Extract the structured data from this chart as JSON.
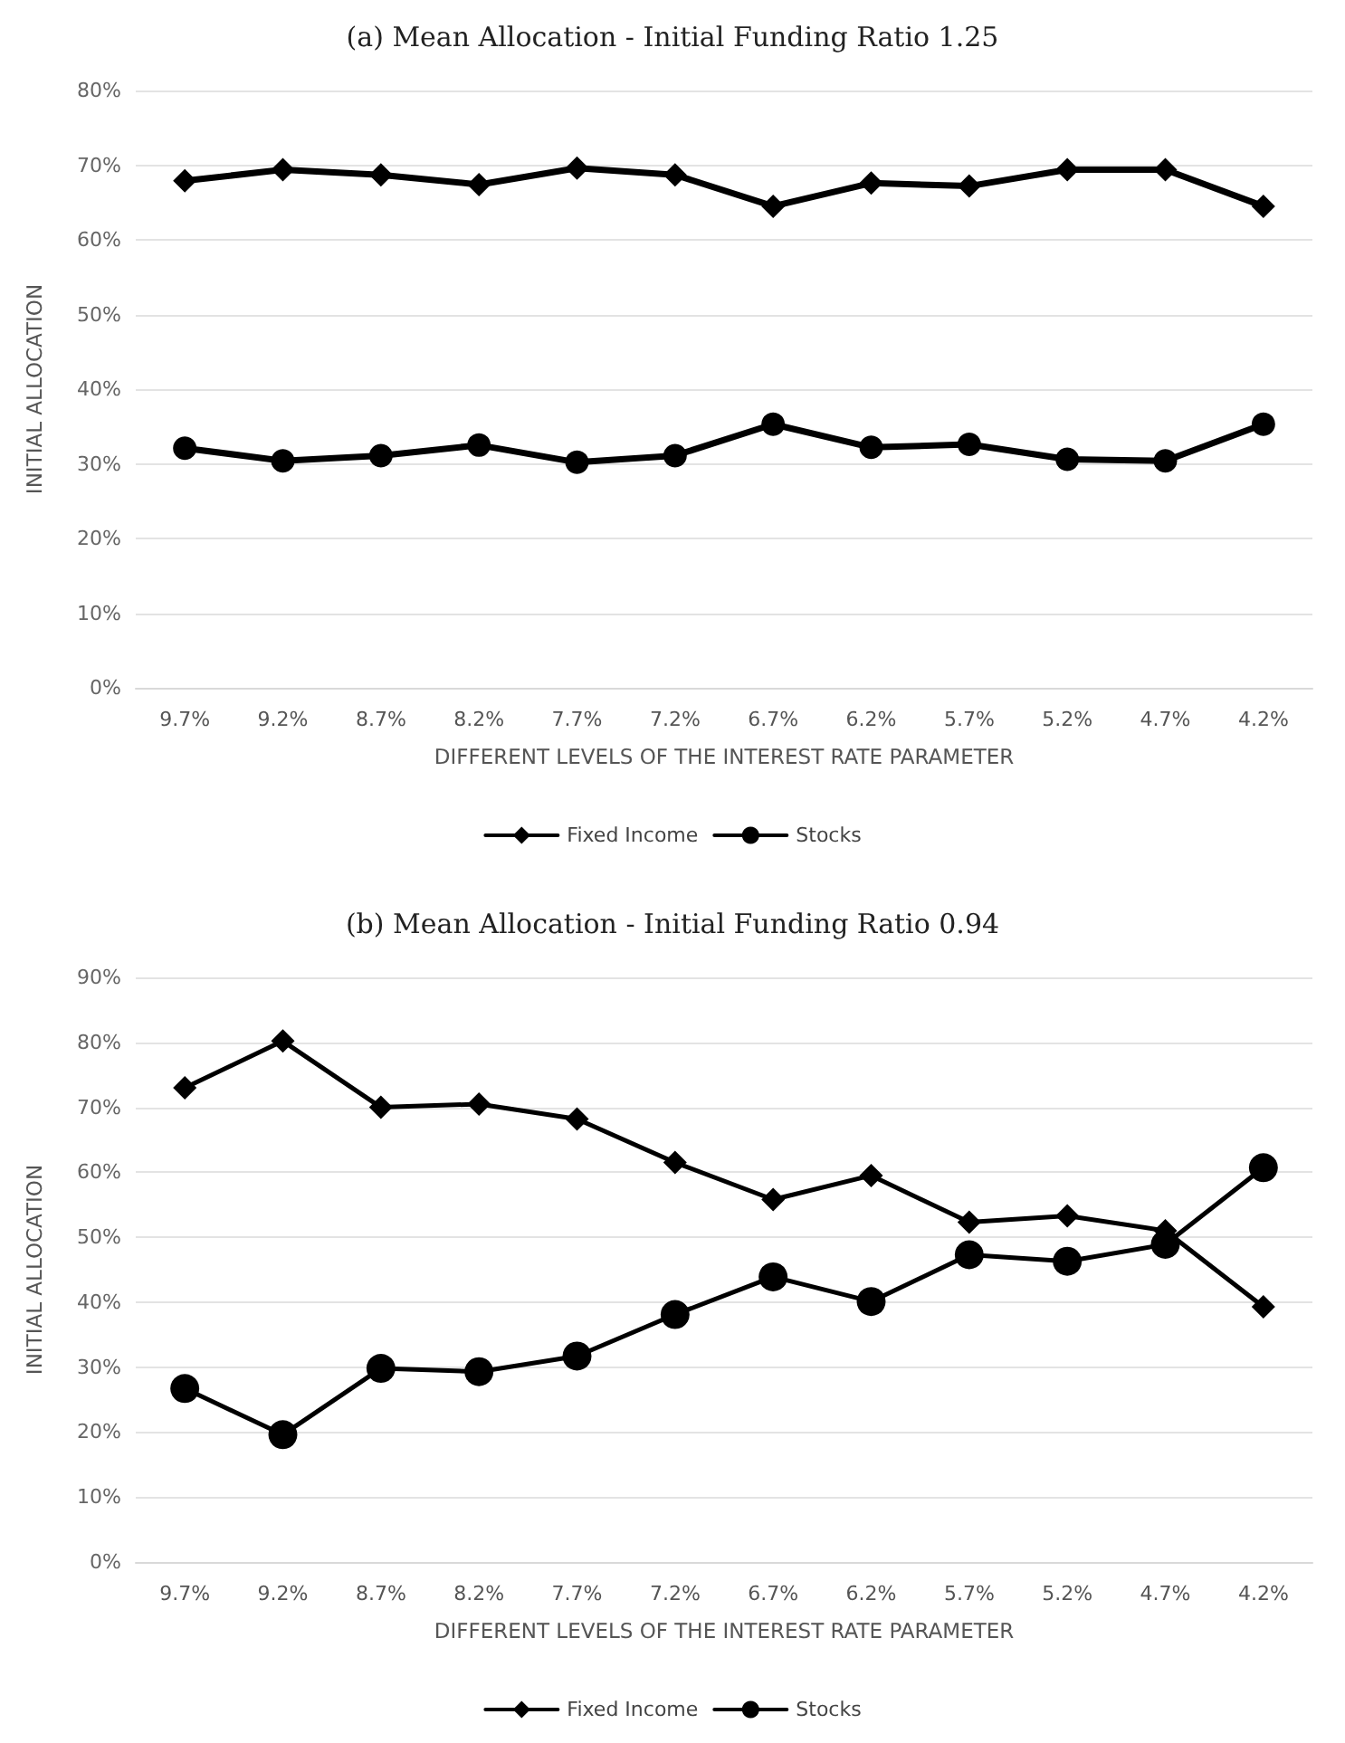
{
  "chart_data": [
    {
      "type": "line",
      "title": "(a) Mean Allocation - Initial Funding Ratio 1.25",
      "xlabel": "DIFFERENT LEVELS OF THE INTEREST RATE PARAMETER",
      "ylabel": "INITIAL ALLOCATION",
      "categories": [
        "9.7%",
        "9.2%",
        "8.7%",
        "8.2%",
        "7.7%",
        "7.2%",
        "6.7%",
        "6.2%",
        "5.7%",
        "5.2%",
        "4.7%",
        "4.2%"
      ],
      "ylim": [
        0,
        80
      ],
      "yticks": [
        {
          "value": 0,
          "label": "0%"
        },
        {
          "value": 10,
          "label": "10%"
        },
        {
          "value": 20,
          "label": "20%"
        },
        {
          "value": 30,
          "label": "30%"
        },
        {
          "value": 40,
          "label": "40%"
        },
        {
          "value": 50,
          "label": "50%"
        },
        {
          "value": 60,
          "label": "60%"
        },
        {
          "value": 70,
          "label": "70%"
        },
        {
          "value": 80,
          "label": "80%"
        }
      ],
      "grid": "y",
      "legend": "bottom",
      "line_style": "solid",
      "series": [
        {
          "name": "Fixed Income",
          "color": "#000000",
          "marker": "diamond",
          "values": [
            67.9,
            69.4,
            68.7,
            67.4,
            69.6,
            68.7,
            64.5,
            67.6,
            67.2,
            69.4,
            69.4,
            64.5
          ]
        },
        {
          "name": "Stocks",
          "color": "#000000",
          "marker": "circle",
          "values": [
            32.1,
            30.4,
            31.1,
            32.5,
            30.2,
            31.1,
            35.3,
            32.2,
            32.6,
            30.6,
            30.4,
            35.3
          ]
        }
      ]
    },
    {
      "type": "line",
      "title": "(b) Mean Allocation - Initial Funding Ratio 0.94",
      "xlabel": "DIFFERENT LEVELS OF THE INTEREST RATE PARAMETER",
      "ylabel": "INITIAL ALLOCATION",
      "categories": [
        "9.7%",
        "9.2%",
        "8.7%",
        "8.2%",
        "7.7%",
        "7.2%",
        "6.7%",
        "6.2%",
        "5.7%",
        "5.2%",
        "4.7%",
        "4.2%"
      ],
      "ylim": [
        0,
        90
      ],
      "yticks": [
        {
          "value": 0,
          "label": "0%"
        },
        {
          "value": 10,
          "label": "10%"
        },
        {
          "value": 20,
          "label": "20%"
        },
        {
          "value": 30,
          "label": "30%"
        },
        {
          "value": 40,
          "label": "40%"
        },
        {
          "value": 50,
          "label": "50%"
        },
        {
          "value": 60,
          "label": "60%"
        },
        {
          "value": 70,
          "label": "70%"
        },
        {
          "value": 80,
          "label": "80%"
        },
        {
          "value": 90,
          "label": "90%"
        }
      ],
      "grid": "y",
      "legend": "bottom",
      "line_style": "solid",
      "series": [
        {
          "name": "Fixed Income",
          "color": "#000000",
          "marker": "diamond",
          "values": [
            73,
            80.2,
            70,
            70.5,
            68.2,
            61.5,
            55.8,
            59.5,
            52.3,
            53.3,
            51,
            39.3
          ]
        },
        {
          "name": "Stocks",
          "color": "#000000",
          "marker": "circle",
          "values": [
            26.7,
            19.6,
            29.8,
            29.3,
            31.7,
            38.1,
            43.9,
            40.1,
            47.3,
            46.3,
            48.9,
            60.7
          ]
        }
      ]
    }
  ]
}
